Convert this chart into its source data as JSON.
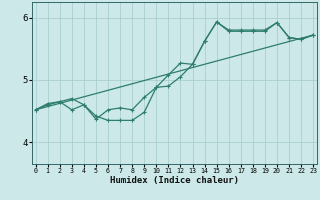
{
  "xlabel": "Humidex (Indice chaleur)",
  "bg_color": "#cce8e8",
  "line_color": "#2e7d6e",
  "grid_color": "#aacece",
  "x_ticks": [
    0,
    1,
    2,
    3,
    4,
    5,
    6,
    7,
    8,
    9,
    10,
    11,
    12,
    13,
    14,
    15,
    16,
    17,
    18,
    19,
    20,
    21,
    22,
    23
  ],
  "y_ticks": [
    4,
    5,
    6
  ],
  "ylim": [
    3.65,
    6.25
  ],
  "xlim": [
    -0.3,
    23.3
  ],
  "curve1_x": [
    0,
    1,
    2,
    3,
    4,
    5,
    6,
    7,
    8,
    9,
    10,
    11,
    12,
    13,
    14,
    15,
    16,
    17,
    18,
    19,
    20,
    21,
    22,
    23
  ],
  "curve1_y": [
    4.52,
    4.62,
    4.65,
    4.7,
    4.6,
    4.37,
    4.52,
    4.55,
    4.52,
    4.72,
    4.88,
    5.08,
    5.27,
    5.25,
    5.62,
    5.93,
    5.8,
    5.8,
    5.8,
    5.8,
    5.92,
    5.68,
    5.65,
    5.72
  ],
  "curve3_x": [
    0,
    1,
    2,
    3,
    4,
    5,
    6,
    7,
    8,
    9,
    10,
    11,
    12,
    13,
    14,
    15,
    16,
    17,
    18,
    19,
    20,
    21,
    22,
    23
  ],
  "curve3_y": [
    4.52,
    4.6,
    4.65,
    4.52,
    4.6,
    4.42,
    4.35,
    4.35,
    4.35,
    4.48,
    4.88,
    4.9,
    5.05,
    5.25,
    5.62,
    5.93,
    5.78,
    5.78,
    5.78,
    5.78,
    5.92,
    5.68,
    5.65,
    5.72
  ],
  "curve2_x": [
    0,
    23
  ],
  "curve2_y": [
    4.52,
    5.72
  ]
}
